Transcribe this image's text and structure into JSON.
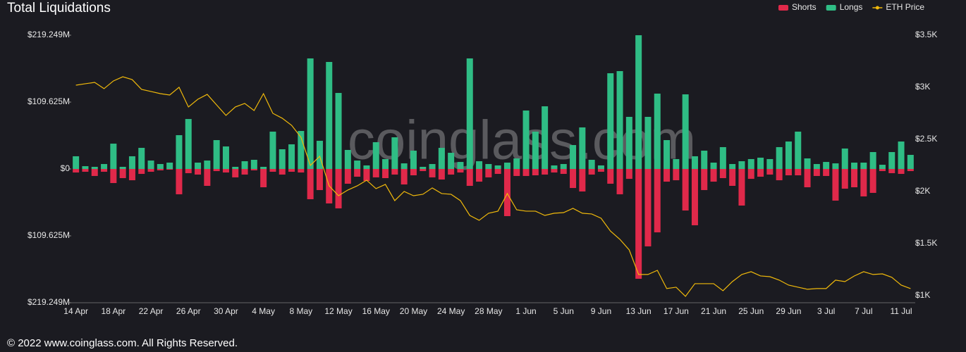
{
  "chart_data": {
    "type": "bar",
    "title": "Total Liquidations",
    "watermark": "coinglass.com",
    "footer": "© 2022 www.coinglass.com. All Rights Reserved.",
    "categories": [
      "14 Apr",
      null,
      null,
      null,
      "18 Apr",
      null,
      null,
      null,
      "22 Apr",
      null,
      null,
      null,
      "26 Apr",
      null,
      null,
      null,
      "30 Apr",
      null,
      null,
      null,
      "4 May",
      null,
      null,
      null,
      "8 May",
      null,
      null,
      null,
      "12 May",
      null,
      null,
      null,
      "16 May",
      null,
      null,
      null,
      "20 May",
      null,
      null,
      null,
      "24 May",
      null,
      null,
      null,
      "28 May",
      null,
      null,
      null,
      "1 Jun",
      null,
      null,
      null,
      "5 Jun",
      null,
      null,
      null,
      "9 Jun",
      null,
      null,
      null,
      "13 Jun",
      null,
      null,
      null,
      "17 Jun",
      null,
      null,
      null,
      "21 Jun",
      null,
      null,
      null,
      "25 Jun",
      null,
      null,
      null,
      "29 Jun",
      null,
      null,
      null,
      "3 Jul",
      null,
      null,
      null,
      "7 Jul",
      null,
      null,
      null,
      "11 Jul",
      null
    ],
    "series": [
      {
        "name": "Shorts",
        "color": "#e0294a",
        "values": [
          -5.8,
          -4.6,
          -11.5,
          -4.6,
          -23.1,
          -15,
          -18.5,
          -8.1,
          -4.6,
          -2.3,
          -1.2,
          -41.5,
          -6.9,
          -9.2,
          -27.7,
          -3.5,
          -5.8,
          -13.8,
          -9.2,
          -2.3,
          -30,
          -4.6,
          -9.2,
          -4.6,
          -5.8,
          -49.6,
          -34.6,
          -56.5,
          -64.6,
          -24.2,
          -12.7,
          -19.6,
          -13.8,
          -15,
          -9.2,
          -25.4,
          -10.4,
          -3.5,
          -13.8,
          -17.3,
          -9.2,
          -5.8,
          -27.7,
          -20.8,
          -13.8,
          -8.1,
          -77.3,
          -11.5,
          -11.5,
          -10.4,
          -9.2,
          -5.8,
          -8.1,
          -31.2,
          -36.9,
          -9.2,
          -4.6,
          -24.2,
          -41.5,
          -16.2,
          -180,
          -126.9,
          -103.9,
          -20.8,
          -18.5,
          -68.1,
          -92.3,
          -34.6,
          -20.8,
          -15,
          -27.7,
          -60,
          -16.2,
          -12.7,
          -9.2,
          -18.5,
          -10.4,
          -10.4,
          -30,
          -11.5,
          -11.5,
          -51.9,
          -32.3,
          -30,
          -45,
          -39.2,
          -3.5,
          -6.9,
          -8.1,
          -3.5
        ]
      },
      {
        "name": "Longs",
        "color": "#2fbd85",
        "values": [
          20.8,
          4.6,
          3.5,
          8.1,
          41.5,
          3.5,
          20.8,
          34.6,
          13.8,
          8.1,
          10.4,
          55.4,
          81.9,
          10.4,
          13.8,
          47.3,
          36.9,
          3.5,
          12.7,
          15,
          3.5,
          61.2,
          32.3,
          40.4,
          62.3,
          181.2,
          46.2,
          175.4,
          124.6,
          31.2,
          13.8,
          5.8,
          43.9,
          16.2,
          51.9,
          9.2,
          30,
          3.5,
          8.1,
          34.6,
          26.5,
          11.5,
          181.2,
          12.7,
          8.1,
          5.8,
          10.4,
          17.3,
          95.8,
          61.2,
          102.7,
          5.8,
          8.1,
          39.2,
          68.1,
          15,
          5.8,
          156.9,
          160.4,
          85.4,
          219.2,
          85.4,
          123.5,
          47.3,
          16.2,
          122.3,
          20.8,
          30,
          10.4,
          35.8,
          8.1,
          12.7,
          16.2,
          18.5,
          16.2,
          35.8,
          45,
          61.2,
          17.3,
          8.1,
          11.5,
          9.2,
          33.5,
          10.4,
          10.4,
          27.7,
          6.9,
          27.7,
          45,
          23.1
        ]
      },
      {
        "name": "ETH Price",
        "color": "#f0b90b",
        "type": "line",
        "axis": "y2",
        "values": [
          3020,
          3034,
          3047,
          2987,
          3061,
          3101,
          3074,
          2980,
          2960,
          2939,
          2926,
          3000,
          2811,
          2885,
          2932,
          2831,
          2730,
          2811,
          2845,
          2777,
          2939,
          2750,
          2703,
          2635,
          2520,
          2250,
          2338,
          2054,
          1959,
          2014,
          2054,
          2108,
          2027,
          2068,
          1912,
          2000,
          1959,
          1973,
          2034,
          1980,
          1973,
          1912,
          1770,
          1723,
          1791,
          1811,
          1980,
          1824,
          1811,
          1811,
          1770,
          1791,
          1797,
          1838,
          1791,
          1784,
          1743,
          1620,
          1541,
          1439,
          1203,
          1203,
          1243,
          1068,
          1081,
          993,
          1115,
          1115,
          1115,
          1047,
          1135,
          1203,
          1230,
          1189,
          1182,
          1149,
          1101,
          1081,
          1061,
          1068,
          1068,
          1149,
          1135,
          1189,
          1230,
          1203,
          1209,
          1176,
          1101,
          1068
        ]
      }
    ],
    "ylim": [
      -219.249,
      219.249
    ],
    "yticks": [
      {
        "value": 219.249,
        "label": "$219.249M"
      },
      {
        "value": 109.625,
        "label": "$109.625M"
      },
      {
        "value": 0,
        "label": "$0"
      },
      {
        "value": -109.625,
        "label": "$109.625M"
      },
      {
        "value": -219.249,
        "label": "$219.249M"
      }
    ],
    "y2lim": [
      932,
      3500
    ],
    "y2ticks": [
      {
        "value": 3500,
        "label": "$3.5K"
      },
      {
        "value": 3000,
        "label": "$3K"
      },
      {
        "value": 2500,
        "label": "$2.5K"
      },
      {
        "value": 2000,
        "label": "$2K"
      },
      {
        "value": 1500,
        "label": "$1.5K"
      },
      {
        "value": 1000,
        "label": "$1K"
      }
    ],
    "legend": "top-right"
  }
}
